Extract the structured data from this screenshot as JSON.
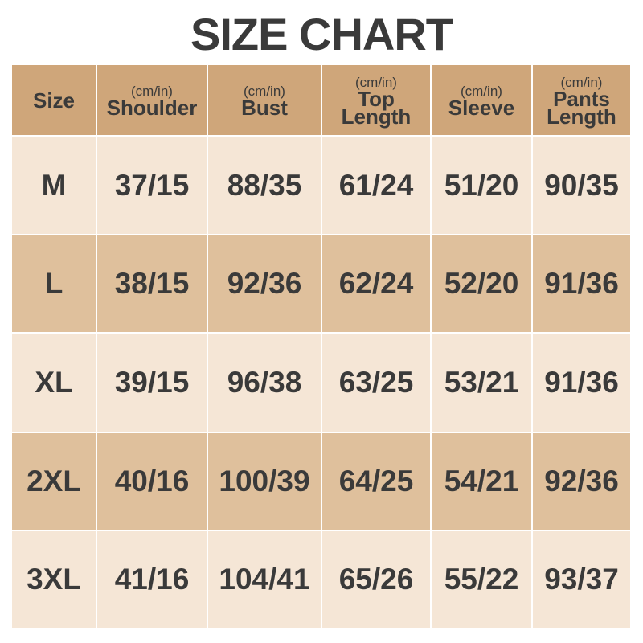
{
  "title": "SIZE CHART",
  "colors": {
    "header": "#cfa67a",
    "row_light": "#f5e6d6",
    "row_dark": "#dfc09c",
    "text": "#3a3a3a"
  },
  "headers": [
    {
      "unit": "",
      "label": "Size"
    },
    {
      "unit": "(cm/in)",
      "label": "Shoulder"
    },
    {
      "unit": "(cm/in)",
      "label": "Bust"
    },
    {
      "unit": "(cm/in)",
      "label": "Top Length"
    },
    {
      "unit": "(cm/in)",
      "label": "Sleeve"
    },
    {
      "unit": "(cm/in)",
      "label": "Pants Length"
    }
  ],
  "rows": [
    [
      "M",
      "37/15",
      "88/35",
      "61/24",
      "51/20",
      "90/35"
    ],
    [
      "L",
      "38/15",
      "92/36",
      "62/24",
      "52/20",
      "91/36"
    ],
    [
      "XL",
      "39/15",
      "96/38",
      "63/25",
      "53/21",
      "91/36"
    ],
    [
      "2XL",
      "40/16",
      "100/39",
      "64/25",
      "54/21",
      "92/36"
    ],
    [
      "3XL",
      "41/16",
      "104/41",
      "65/26",
      "55/22",
      "93/37"
    ]
  ]
}
